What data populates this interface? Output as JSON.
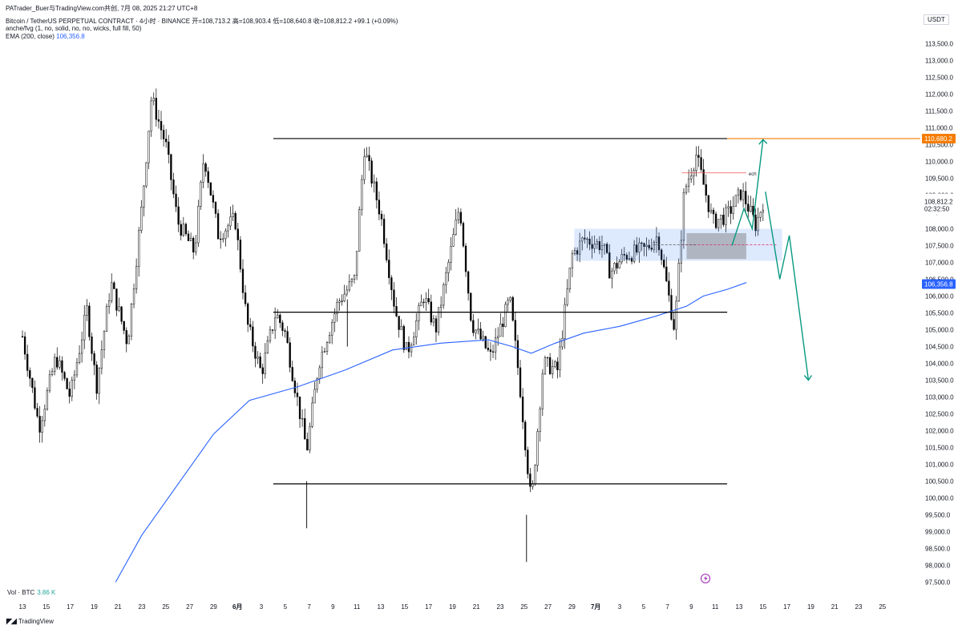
{
  "header": {
    "title_line": "PATrader_Buer与TradingView.com共创, 7月 08, 2025 21:27 UTC+8",
    "symbol_line": "Bitcoin / TetherUS PERPETUAL CONTRACT · 4小时 · BINANCE  开=108,713.2  高=108,903.4  低=108,640.8  收=108,812.2  +99.1 (+0.09%)",
    "indicator_line": "anche/fvg (1, no, solid, no, no, wicks, full fill, 50)",
    "ema_label": "EMA (200, close)",
    "ema_value": "106,356.8"
  },
  "currency": "USDT",
  "volume": {
    "label": "Vol · BTC",
    "value": "3.86 K"
  },
  "branding": "TradingView",
  "chart_data": {
    "type": "candlestick",
    "y_ticks": [
      "113,500.0",
      "113,000.0",
      "112,500.0",
      "112,000.0",
      "111,500.0",
      "111,000.0",
      "110,500.0",
      "110,000.0",
      "109,500.0",
      "109,000.0",
      "108,500.0",
      "108,000.0",
      "107,500.0",
      "107,000.0",
      "106,500.0",
      "106,000.0",
      "105,500.0",
      "105,000.0",
      "104,500.0",
      "104,000.0",
      "103,500.0",
      "103,000.0",
      "102,500.0",
      "102,000.0",
      "101,500.0",
      "101,000.0",
      "100,500.0",
      "100,000.0",
      "99,500.0",
      "99,000.0",
      "98,500.0",
      "98,000.0",
      "97,500.0"
    ],
    "ylim": [
      97400,
      113800
    ],
    "x_ticks": [
      "13",
      "15",
      "17",
      "19",
      "21",
      "23",
      "25",
      "27",
      "29",
      "6月",
      "3",
      "5",
      "7",
      "9",
      "11",
      "13",
      "15",
      "17",
      "19",
      "21",
      "23",
      "25",
      "27",
      "29",
      "7月",
      "3",
      "5",
      "7",
      "9",
      "11",
      "13",
      "15",
      "17",
      "19",
      "21",
      "23",
      "25"
    ],
    "price_labels": {
      "level_top": "110,680.2",
      "current": "108,812.2",
      "countdown": "02:32:50",
      "ema": "106,356.8"
    },
    "horizontal_levels": [
      {
        "price": 110680,
        "from_tick": 10.5,
        "to_tick": 29.5,
        "color": "#000000"
      },
      {
        "price": 105520,
        "from_tick": 10.5,
        "to_tick": 29.5,
        "color": "#000000"
      },
      {
        "price": 100420,
        "from_tick": 10.5,
        "to_tick": 29.5,
        "color": "#000000"
      }
    ],
    "annotation_text": "ech",
    "swing_lows": [
      {
        "tick": 13.6,
        "price": 104500
      },
      {
        "tick": 11.9,
        "price": 99100
      },
      {
        "tick": 21.1,
        "price": 98100
      }
    ],
    "colors": {
      "candle": "#000000",
      "ema": "#2962ff",
      "level_top": "#f57c00",
      "ema_tag": "#2962ff",
      "projection": "#089981"
    }
  }
}
